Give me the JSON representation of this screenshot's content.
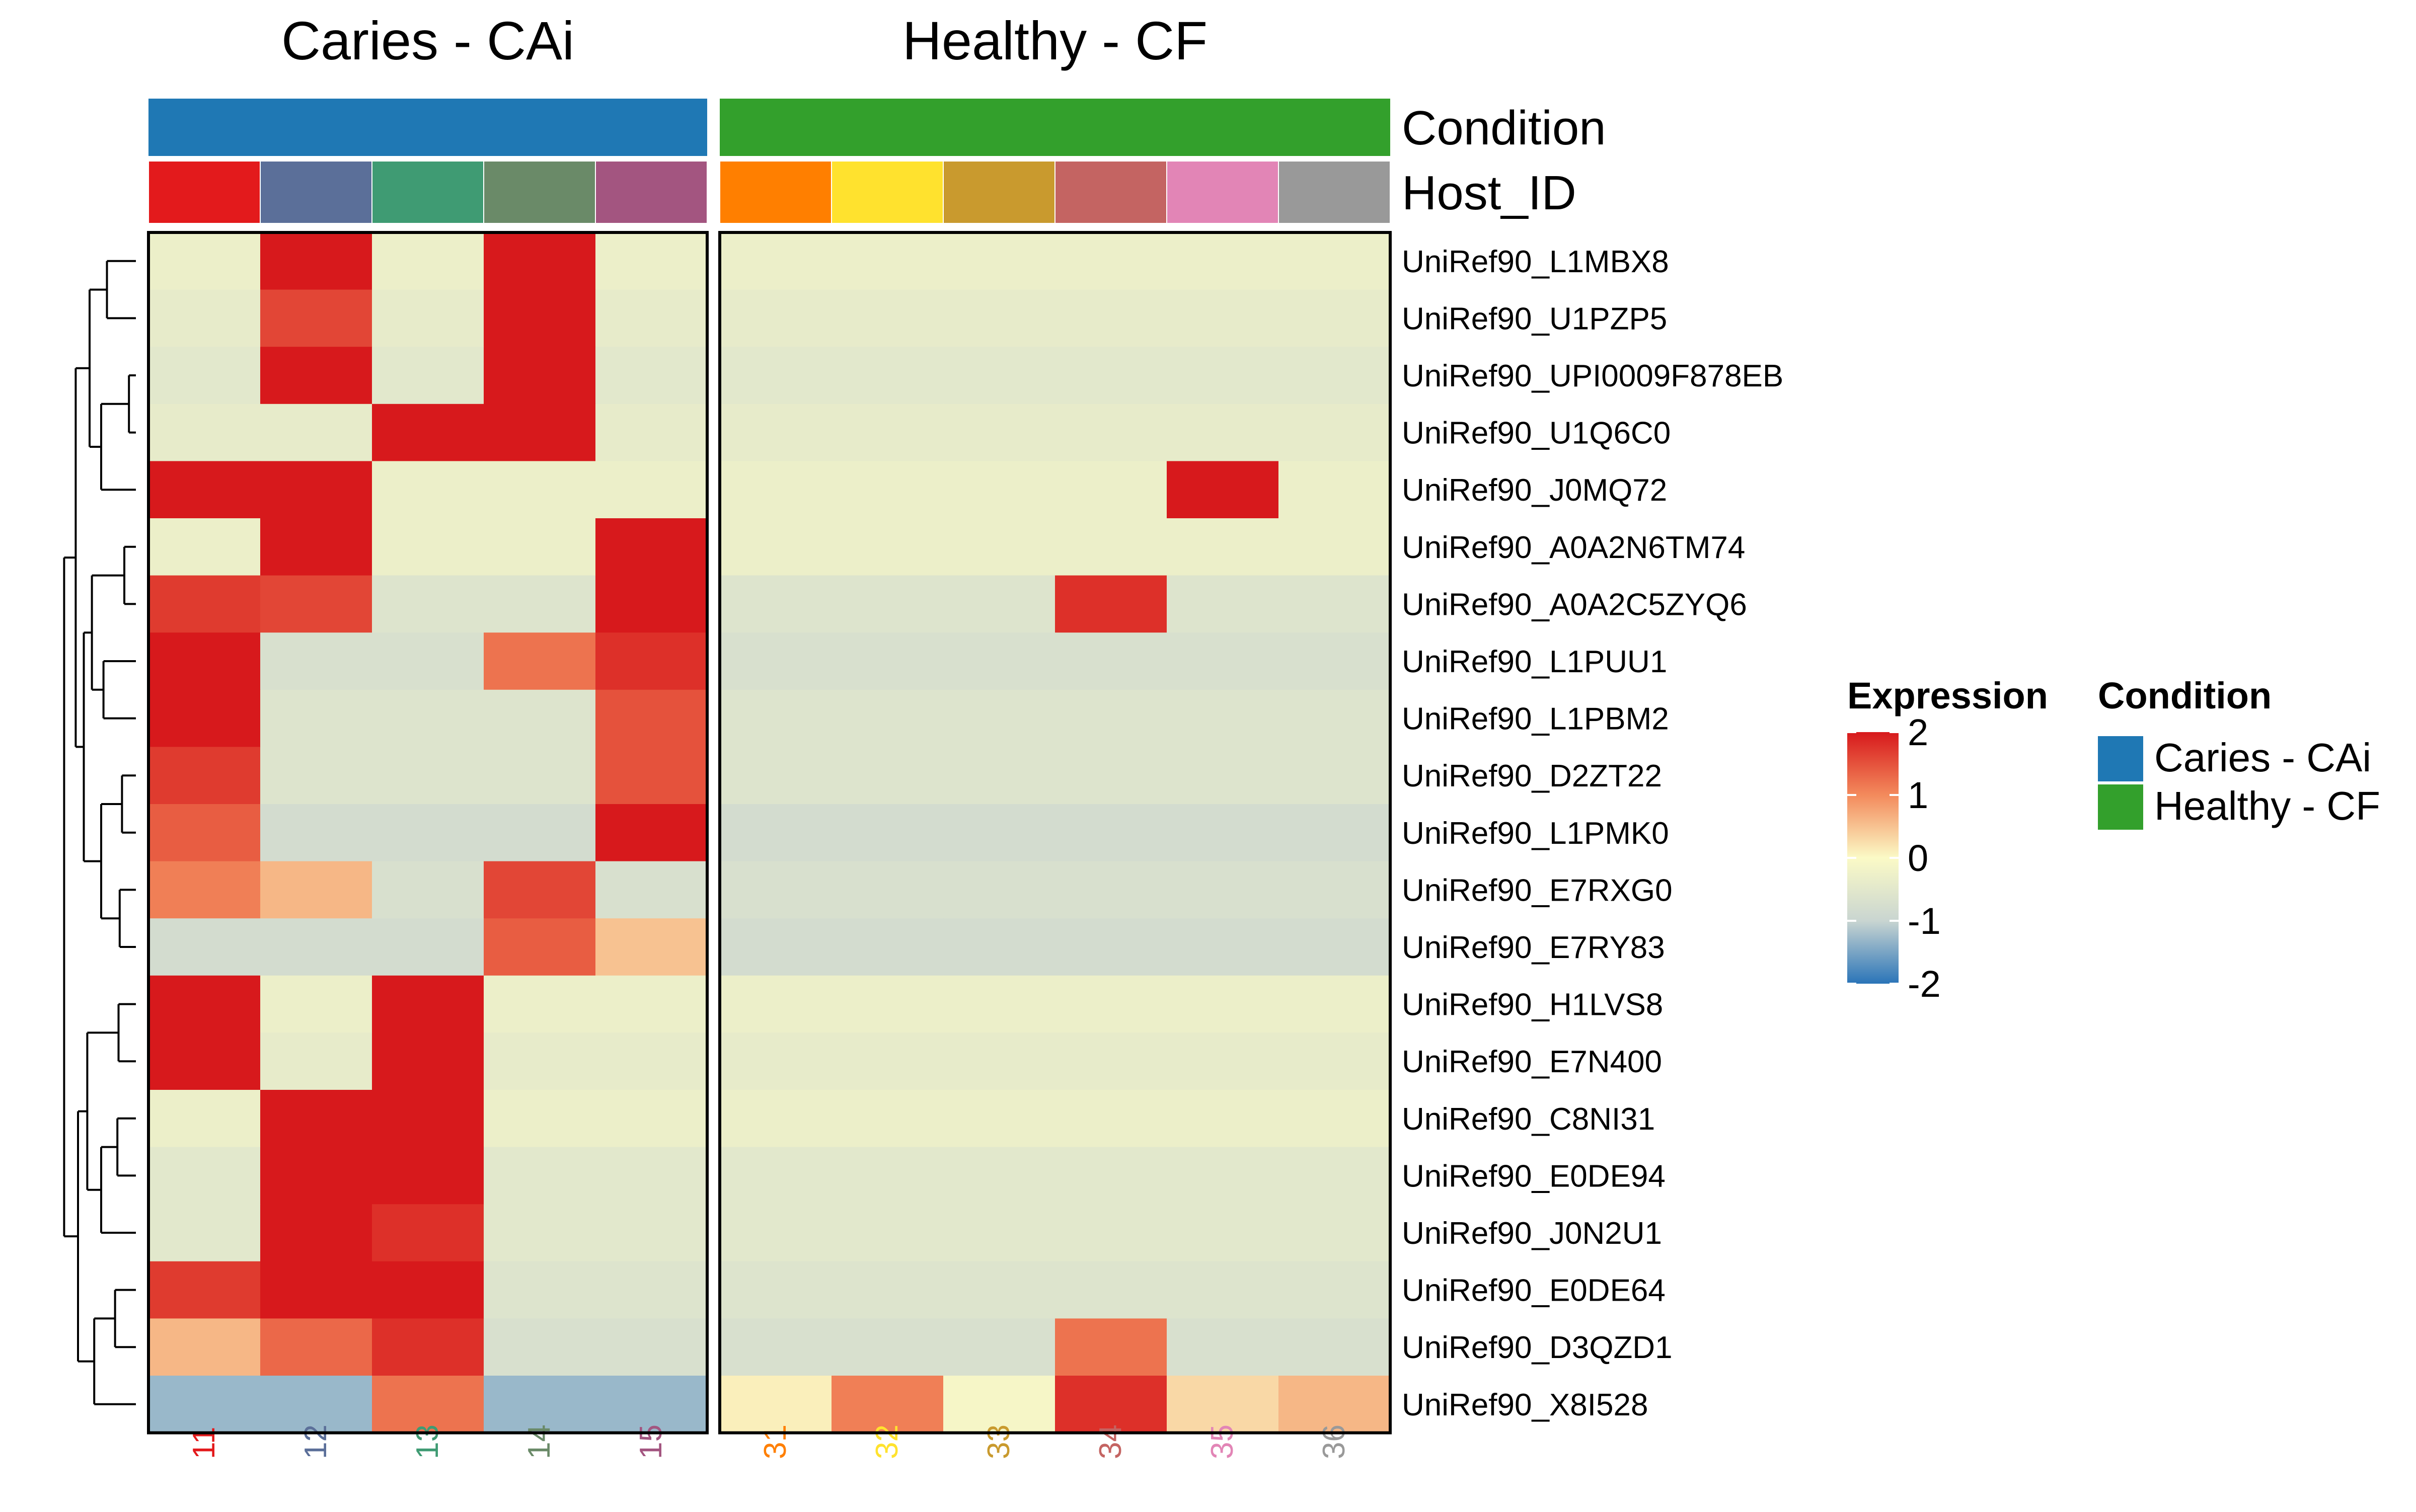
{
  "chart_data": {
    "type": "heatmap",
    "column_groups": [
      {
        "title": "Caries - CAi",
        "condition": "Caries - CAi",
        "columns": [
          "11",
          "12",
          "13",
          "14",
          "15"
        ]
      },
      {
        "title": "Healthy - CF",
        "condition": "Healthy - CF",
        "columns": [
          "31",
          "32",
          "33",
          "34",
          "35",
          "36"
        ]
      }
    ],
    "annotation_tracks": [
      {
        "label": "Condition",
        "key": "condition"
      },
      {
        "label": "Host_ID",
        "key": "host"
      }
    ],
    "column_labels": [
      "11",
      "12",
      "13",
      "14",
      "15",
      "31",
      "32",
      "33",
      "34",
      "35",
      "36"
    ],
    "host_colors": [
      "#e31a1c",
      "#5b6f99",
      "#3f9b73",
      "#6a8a68",
      "#a35580",
      "#ff7f00",
      "#ffe22e",
      "#c99a2e",
      "#c46462",
      "#e285b6",
      "#999999"
    ],
    "condition_colors": {
      "Caries - CAi": "#1f78b4",
      "Healthy - CF": "#33a02c"
    },
    "rows": [
      "UniRef90_L1MBX8",
      "UniRef90_U1PZP5",
      "UniRef90_UPI0009F878EB",
      "UniRef90_U1Q6C0",
      "UniRef90_J0MQ72",
      "UniRef90_A0A2N6TM74",
      "UniRef90_A0A2C5ZYQ6",
      "UniRef90_L1PUU1",
      "UniRef90_L1PBM2",
      "UniRef90_D2ZT22",
      "UniRef90_L1PMK0",
      "UniRef90_E7RXG0",
      "UniRef90_E7RY83",
      "UniRef90_H1LVS8",
      "UniRef90_E7N400",
      "UniRef90_C8NI31",
      "UniRef90_E0DE94",
      "UniRef90_J0N2U1",
      "UniRef90_E0DE64",
      "UniRef90_D3QZD1",
      "UniRef90_X8I528"
    ],
    "values": [
      [
        -0.3,
        2,
        -0.3,
        2,
        -0.3,
        -0.3,
        -0.3,
        -0.3,
        -0.3,
        -0.3,
        -0.3
      ],
      [
        -0.4,
        1.6,
        -0.4,
        2,
        -0.4,
        -0.4,
        -0.4,
        -0.4,
        -0.4,
        -0.4,
        -0.4
      ],
      [
        -0.5,
        2,
        -0.5,
        2,
        -0.5,
        -0.5,
        -0.5,
        -0.5,
        -0.5,
        -0.5,
        -0.5
      ],
      [
        -0.4,
        -0.4,
        2,
        2,
        -0.4,
        -0.4,
        -0.4,
        -0.4,
        -0.4,
        -0.4,
        -0.4
      ],
      [
        2,
        2,
        -0.3,
        -0.3,
        -0.3,
        -0.3,
        -0.3,
        -0.3,
        -0.3,
        2,
        -0.3
      ],
      [
        -0.3,
        2,
        -0.3,
        -0.3,
        2,
        -0.3,
        -0.3,
        -0.3,
        -0.3,
        -0.3,
        -0.3
      ],
      [
        1.7,
        1.6,
        -0.6,
        -0.6,
        2,
        -0.6,
        -0.6,
        -0.6,
        1.8,
        -0.6,
        -0.6
      ],
      [
        2,
        -0.7,
        -0.7,
        1.2,
        1.8,
        -0.7,
        -0.7,
        -0.7,
        -0.7,
        -0.7,
        -0.7
      ],
      [
        2,
        -0.6,
        -0.6,
        -0.6,
        1.5,
        -0.6,
        -0.6,
        -0.6,
        -0.6,
        -0.6,
        -0.6
      ],
      [
        1.7,
        -0.6,
        -0.6,
        -0.6,
        1.5,
        -0.6,
        -0.6,
        -0.6,
        -0.6,
        -0.6,
        -0.6
      ],
      [
        1.4,
        -0.8,
        -0.8,
        -0.8,
        2,
        -0.8,
        -0.8,
        -0.8,
        -0.8,
        -0.8,
        -0.8
      ],
      [
        1.1,
        0.6,
        -0.7,
        1.6,
        -0.7,
        -0.7,
        -0.7,
        -0.7,
        -0.7,
        -0.7,
        -0.7
      ],
      [
        -0.8,
        -0.8,
        -0.8,
        1.4,
        0.5,
        -0.8,
        -0.8,
        -0.8,
        -0.8,
        -0.8,
        -0.8
      ],
      [
        2,
        -0.3,
        2,
        -0.3,
        -0.3,
        -0.3,
        -0.3,
        -0.3,
        -0.3,
        -0.3,
        -0.3
      ],
      [
        2,
        -0.4,
        2,
        -0.4,
        -0.4,
        -0.4,
        -0.4,
        -0.4,
        -0.4,
        -0.4,
        -0.4
      ],
      [
        -0.3,
        2,
        2,
        -0.3,
        -0.3,
        -0.3,
        -0.3,
        -0.3,
        -0.3,
        -0.3,
        -0.3
      ],
      [
        -0.5,
        2,
        2,
        -0.5,
        -0.5,
        -0.5,
        -0.5,
        -0.5,
        -0.5,
        -0.5,
        -0.5
      ],
      [
        -0.5,
        2,
        1.8,
        -0.5,
        -0.5,
        -0.5,
        -0.5,
        -0.5,
        -0.5,
        -0.5,
        -0.5
      ],
      [
        1.7,
        2,
        2,
        -0.6,
        -0.6,
        -0.6,
        -0.6,
        -0.6,
        -0.6,
        -0.6,
        -0.6
      ],
      [
        0.6,
        1.3,
        1.8,
        -0.7,
        -0.7,
        -0.7,
        -0.7,
        -0.7,
        1.2,
        -0.7,
        -0.7
      ],
      [
        -1.3,
        -1.3,
        1.2,
        -1.3,
        -1.3,
        0.1,
        1.1,
        -0.1,
        1.8,
        0.3,
        0.6
      ]
    ],
    "dendrogram": [
      [
        0,
        1,
        0.1
      ],
      [
        2,
        3,
        0.15
      ],
      [
        4,
        5,
        0.25
      ],
      [
        6,
        3,
        0.4
      ],
      [
        4,
        5,
        0.3
      ],
      [
        10,
        6,
        0.42
      ],
      [
        7,
        8,
        0.12
      ],
      [
        9,
        12,
        0.18
      ],
      [
        10,
        13,
        0.3
      ],
      [
        11,
        12,
        0.28
      ],
      [
        15,
        16,
        0.38
      ],
      [
        14,
        17,
        0.52
      ],
      [
        13,
        14,
        0.14
      ],
      [
        16,
        17,
        0.06
      ],
      [
        19,
        17,
        0.16
      ],
      [
        20,
        21,
        0.3
      ],
      [
        18,
        22,
        0.36
      ],
      [
        23,
        24,
        0.45
      ],
      [
        22,
        25,
        0.5
      ],
      [
        26,
        20,
        0.62
      ],
      [
        11,
        27,
        0.72
      ],
      [
        28,
        29,
        0.8
      ]
    ],
    "legend_expression": {
      "title": "Expression",
      "ticks": [
        "2",
        "1",
        "0",
        "-1",
        "-2"
      ],
      "tick_values": [
        2,
        1,
        0,
        -1,
        -2
      ],
      "range": [
        -2,
        2
      ],
      "colors": [
        "#2a74b8",
        "#c9d5d1",
        "#fbfac6",
        "#f38a5c",
        "#d7191c"
      ]
    },
    "legend_condition": {
      "title": "Condition",
      "items": [
        {
          "label": "Caries - CAi",
          "color": "#1f78b4"
        },
        {
          "label": "Healthy - CF",
          "color": "#33a02c"
        }
      ]
    }
  }
}
